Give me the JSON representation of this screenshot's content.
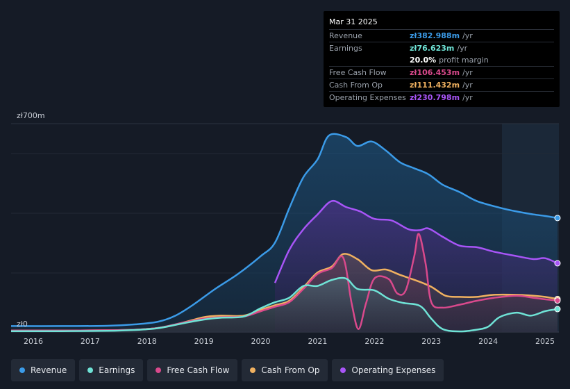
{
  "tooltip": {
    "date": "Mar 31 2025",
    "rows": [
      {
        "label": "Revenue",
        "value": "zł382.988m",
        "unit": "/yr",
        "color": "#3b9be8"
      },
      {
        "label": "Earnings",
        "value": "zł76.623m",
        "unit": "/yr",
        "color": "#6fe3d6"
      },
      {
        "label": "",
        "value": "20.0%",
        "unit": "profit margin",
        "color": "#ffffff"
      },
      {
        "label": "Free Cash Flow",
        "value": "zł106.453m",
        "unit": "/yr",
        "color": "#d9498c"
      },
      {
        "label": "Cash From Op",
        "value": "zł111.432m",
        "unit": "/yr",
        "color": "#f0b160"
      },
      {
        "label": "Operating Expenses",
        "value": "zł230.798m",
        "unit": "/yr",
        "color": "#a855f7"
      }
    ]
  },
  "legend": [
    {
      "label": "Revenue",
      "color": "#3b9be8"
    },
    {
      "label": "Earnings",
      "color": "#6fe3d6"
    },
    {
      "label": "Free Cash Flow",
      "color": "#d9498c"
    },
    {
      "label": "Cash From Op",
      "color": "#f0b160"
    },
    {
      "label": "Operating Expenses",
      "color": "#a855f7"
    }
  ],
  "chart_data": {
    "type": "area",
    "y_top_label": "zł700m",
    "y_bottom_label": "zł0",
    "ylim": [
      0,
      700
    ],
    "xlim": [
      2015.6,
      2025.25
    ],
    "x_ticks": [
      {
        "value": 2016,
        "label": "2016"
      },
      {
        "value": 2017,
        "label": "2017"
      },
      {
        "value": 2018,
        "label": "2018"
      },
      {
        "value": 2019,
        "label": "2019"
      },
      {
        "value": 2020,
        "label": "2020"
      },
      {
        "value": 2021,
        "label": "2021"
      },
      {
        "value": 2022,
        "label": "2022"
      },
      {
        "value": 2023,
        "label": "2023"
      },
      {
        "value": 2024,
        "label": "2024"
      },
      {
        "value": 2025,
        "label": "2025"
      }
    ],
    "series": [
      {
        "name": "Revenue",
        "color": "#3b9be8",
        "points": [
          [
            2015.6,
            20
          ],
          [
            2016.5,
            20
          ],
          [
            2017.3,
            21
          ],
          [
            2017.8,
            26
          ],
          [
            2018.2,
            35
          ],
          [
            2018.5,
            55
          ],
          [
            2018.8,
            90
          ],
          [
            2019.2,
            145
          ],
          [
            2019.6,
            195
          ],
          [
            2020.0,
            255
          ],
          [
            2020.25,
            300
          ],
          [
            2020.5,
            415
          ],
          [
            2020.75,
            520
          ],
          [
            2021.0,
            580
          ],
          [
            2021.2,
            660
          ],
          [
            2021.5,
            655
          ],
          [
            2021.7,
            625
          ],
          [
            2021.95,
            640
          ],
          [
            2022.2,
            610
          ],
          [
            2022.45,
            570
          ],
          [
            2022.7,
            550
          ],
          [
            2022.95,
            530
          ],
          [
            2023.2,
            495
          ],
          [
            2023.5,
            470
          ],
          [
            2023.8,
            440
          ],
          [
            2024.2,
            418
          ],
          [
            2024.5,
            405
          ],
          [
            2024.8,
            395
          ],
          [
            2025.0,
            390
          ],
          [
            2025.25,
            383
          ]
        ]
      },
      {
        "name": "Operating Expenses",
        "color": "#a855f7",
        "start": 2020.25,
        "points": [
          [
            2020.25,
            165
          ],
          [
            2020.5,
            275
          ],
          [
            2020.75,
            345
          ],
          [
            2021.0,
            395
          ],
          [
            2021.25,
            440
          ],
          [
            2021.5,
            420
          ],
          [
            2021.75,
            405
          ],
          [
            2022.0,
            380
          ],
          [
            2022.3,
            375
          ],
          [
            2022.6,
            345
          ],
          [
            2022.8,
            342
          ],
          [
            2022.95,
            348
          ],
          [
            2023.2,
            320
          ],
          [
            2023.5,
            290
          ],
          [
            2023.8,
            285
          ],
          [
            2024.1,
            270
          ],
          [
            2024.5,
            255
          ],
          [
            2024.8,
            245
          ],
          [
            2025.0,
            248
          ],
          [
            2025.25,
            231
          ]
        ]
      },
      {
        "name": "Cash From Op",
        "color": "#f0b160",
        "points": [
          [
            2015.6,
            5
          ],
          [
            2016.5,
            5
          ],
          [
            2017.3,
            6
          ],
          [
            2017.8,
            8
          ],
          [
            2018.2,
            14
          ],
          [
            2018.6,
            30
          ],
          [
            2019.0,
            50
          ],
          [
            2019.3,
            55
          ],
          [
            2019.7,
            55
          ],
          [
            2020.0,
            75
          ],
          [
            2020.25,
            90
          ],
          [
            2020.5,
            105
          ],
          [
            2020.75,
            150
          ],
          [
            2021.0,
            200
          ],
          [
            2021.25,
            220
          ],
          [
            2021.45,
            262
          ],
          [
            2021.7,
            245
          ],
          [
            2021.95,
            208
          ],
          [
            2022.2,
            210
          ],
          [
            2022.45,
            192
          ],
          [
            2022.75,
            172
          ],
          [
            2023.0,
            152
          ],
          [
            2023.25,
            122
          ],
          [
            2023.5,
            118
          ],
          [
            2023.8,
            118
          ],
          [
            2024.1,
            125
          ],
          [
            2024.5,
            125
          ],
          [
            2024.8,
            122
          ],
          [
            2025.0,
            118
          ],
          [
            2025.25,
            111
          ]
        ]
      },
      {
        "name": "Free Cash Flow",
        "color": "#d9498c",
        "points": [
          [
            2015.6,
            5
          ],
          [
            2016.5,
            5
          ],
          [
            2017.3,
            6
          ],
          [
            2017.8,
            8
          ],
          [
            2018.2,
            14
          ],
          [
            2018.6,
            30
          ],
          [
            2019.0,
            45
          ],
          [
            2019.3,
            50
          ],
          [
            2019.7,
            52
          ],
          [
            2020.0,
            70
          ],
          [
            2020.25,
            85
          ],
          [
            2020.5,
            100
          ],
          [
            2020.75,
            145
          ],
          [
            2021.0,
            195
          ],
          [
            2021.25,
            215
          ],
          [
            2021.45,
            250
          ],
          [
            2021.6,
            95
          ],
          [
            2021.72,
            10
          ],
          [
            2021.85,
            95
          ],
          [
            2022.0,
            180
          ],
          [
            2022.25,
            178
          ],
          [
            2022.4,
            130
          ],
          [
            2022.55,
            140
          ],
          [
            2022.7,
            255
          ],
          [
            2022.78,
            330
          ],
          [
            2022.9,
            230
          ],
          [
            2023.0,
            100
          ],
          [
            2023.2,
            82
          ],
          [
            2023.5,
            92
          ],
          [
            2023.8,
            105
          ],
          [
            2024.1,
            115
          ],
          [
            2024.5,
            122
          ],
          [
            2024.8,
            115
          ],
          [
            2025.0,
            110
          ],
          [
            2025.25,
            106
          ]
        ]
      },
      {
        "name": "Earnings",
        "color": "#6fe3d6",
        "points": [
          [
            2015.6,
            3
          ],
          [
            2016.5,
            3
          ],
          [
            2017.3,
            4
          ],
          [
            2017.8,
            7
          ],
          [
            2018.2,
            13
          ],
          [
            2018.6,
            28
          ],
          [
            2019.0,
            42
          ],
          [
            2019.3,
            48
          ],
          [
            2019.7,
            52
          ],
          [
            2020.0,
            80
          ],
          [
            2020.25,
            100
          ],
          [
            2020.5,
            115
          ],
          [
            2020.75,
            155
          ],
          [
            2021.0,
            155
          ],
          [
            2021.25,
            175
          ],
          [
            2021.5,
            180
          ],
          [
            2021.7,
            145
          ],
          [
            2022.0,
            140
          ],
          [
            2022.25,
            112
          ],
          [
            2022.5,
            98
          ],
          [
            2022.8,
            88
          ],
          [
            2023.0,
            45
          ],
          [
            2023.2,
            10
          ],
          [
            2023.5,
            2
          ],
          [
            2023.8,
            8
          ],
          [
            2024.0,
            18
          ],
          [
            2024.2,
            50
          ],
          [
            2024.5,
            65
          ],
          [
            2024.75,
            55
          ],
          [
            2025.0,
            70
          ],
          [
            2025.25,
            77
          ]
        ]
      }
    ]
  }
}
